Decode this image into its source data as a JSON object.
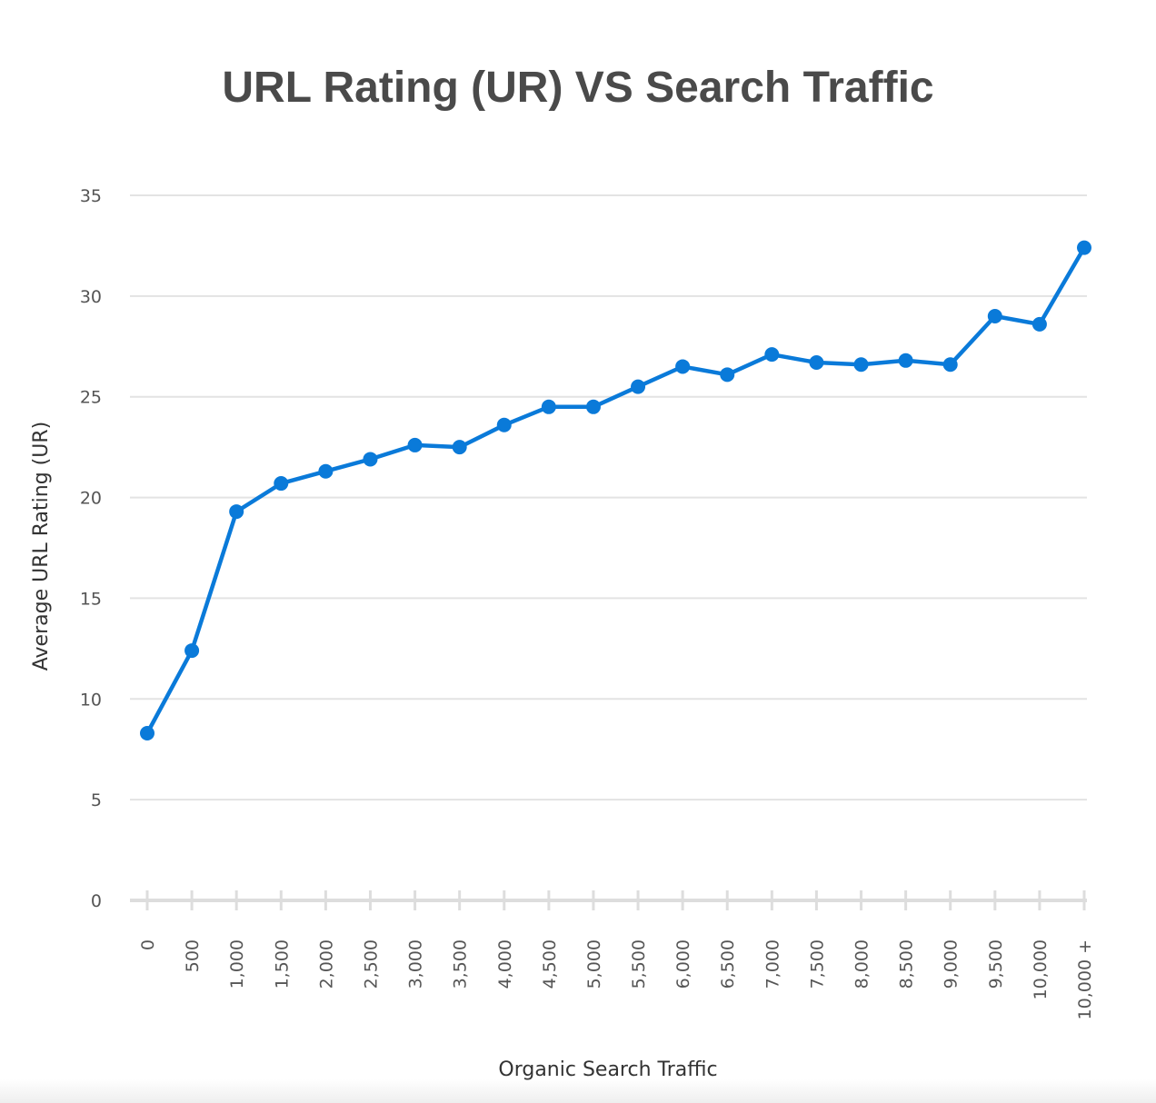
{
  "chart_data": {
    "type": "line",
    "title": "URL Rating (UR) VS Search Traffic",
    "xlabel": "Organic Search Traffic",
    "ylabel": "Average URL Rating (UR)",
    "categories": [
      "0",
      "500",
      "1,000",
      "1,500",
      "2,000",
      "2,500",
      "3,000",
      "3,500",
      "4,000",
      "4,500",
      "5,000",
      "5,500",
      "6,000",
      "6,500",
      "7,000",
      "7,500",
      "8,000",
      "8,500",
      "9,000",
      "9,500",
      "10,000",
      "10,000 +"
    ],
    "series": [
      {
        "values": [
          8.3,
          12.4,
          19.3,
          20.7,
          21.3,
          21.9,
          22.6,
          22.5,
          23.6,
          24.5,
          24.5,
          25.5,
          26.5,
          26.1,
          27.1,
          26.7,
          26.6,
          26.8,
          26.6,
          29.0,
          28.6,
          32.4
        ]
      }
    ],
    "yticks": [
      "0",
      "5",
      "10",
      "15",
      "20",
      "25",
      "30",
      "35"
    ],
    "ylim": [
      0,
      35
    ],
    "grid": true,
    "legend": "none",
    "colors": {
      "line": "#0a7ad9",
      "grid": "#e3e3e3",
      "axis": "#dddddd"
    }
  }
}
